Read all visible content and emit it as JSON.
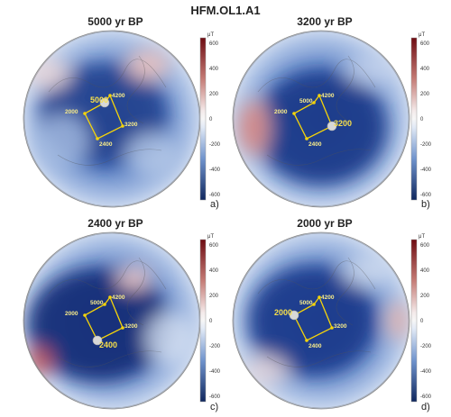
{
  "figure_title": "HFM.OL1.A1",
  "unit": "μT",
  "colorbar_ticks": [
    "600",
    "400",
    "200",
    "0",
    "-200",
    "-400",
    "-600"
  ],
  "colors": {
    "strong_negative": "#1e3c8c",
    "mid_negative": "#5a82c8",
    "weak_negative": "#c4d4ee",
    "zero": "#f4f4f4",
    "weak_positive": "#eec8c4",
    "strong_positive": "#8c1e22",
    "path": "#f5d40a",
    "coastline": "#555555"
  },
  "panels": [
    {
      "title": "5000 yr BP",
      "letter": "a)",
      "highlight": "5000",
      "labels": [
        "5000",
        "4200",
        "3200",
        "2000",
        "2400"
      ]
    },
    {
      "title": "3200 yr BP",
      "letter": "b)",
      "highlight": "3200",
      "labels": [
        "5000",
        "4200",
        "3200",
        "2000",
        "2400"
      ]
    },
    {
      "title": "2400 yr BP",
      "letter": "c)",
      "highlight": "2400",
      "labels": [
        "5000",
        "4200",
        "3200",
        "2000",
        "2400"
      ]
    },
    {
      "title": "2000 yr BP",
      "letter": "d)",
      "highlight": "2000",
      "labels": [
        "5000",
        "4200",
        "3200",
        "2000",
        "2400"
      ]
    }
  ]
}
